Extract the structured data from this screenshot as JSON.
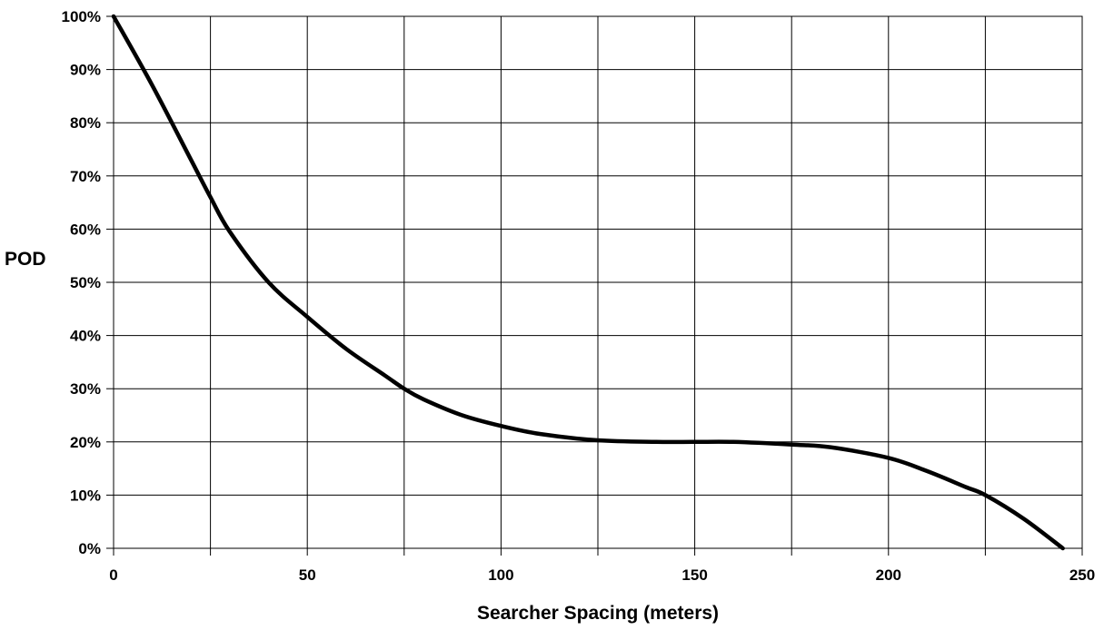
{
  "chart_data": {
    "type": "line",
    "title": "",
    "xlabel": "Searcher Spacing (meters)",
    "ylabel": "POD",
    "xlim": [
      0,
      250
    ],
    "ylim": [
      0,
      100
    ],
    "x_ticks": [
      0,
      25,
      50,
      75,
      100,
      125,
      150,
      175,
      200,
      225,
      250
    ],
    "x_tick_labels": [
      "0",
      "50",
      "100",
      "150",
      "200",
      "250"
    ],
    "x_tick_label_values": [
      0,
      50,
      100,
      150,
      200,
      250
    ],
    "y_ticks": [
      0,
      10,
      20,
      30,
      40,
      50,
      60,
      70,
      80,
      90,
      100
    ],
    "y_tick_labels": [
      "0%",
      "10%",
      "20%",
      "30%",
      "40%",
      "50%",
      "60%",
      "70%",
      "80%",
      "90%",
      "100%"
    ],
    "grid": true,
    "legend": "none",
    "series": [
      {
        "color": "#000000",
        "x": [
          0,
          10,
          20,
          25,
          30,
          40,
          50,
          60,
          70,
          75,
          80,
          90,
          100,
          110,
          125,
          140,
          150,
          160,
          175,
          185,
          200,
          210,
          220,
          225,
          235,
          245
        ],
        "y": [
          100,
          87,
          73,
          66,
          59.5,
          50,
          43.5,
          37.5,
          32.5,
          30,
          28,
          25,
          23,
          21.5,
          20.3,
          20,
          20,
          20,
          19.5,
          19,
          17,
          14.5,
          11.5,
          10,
          5.5,
          0
        ]
      }
    ]
  }
}
